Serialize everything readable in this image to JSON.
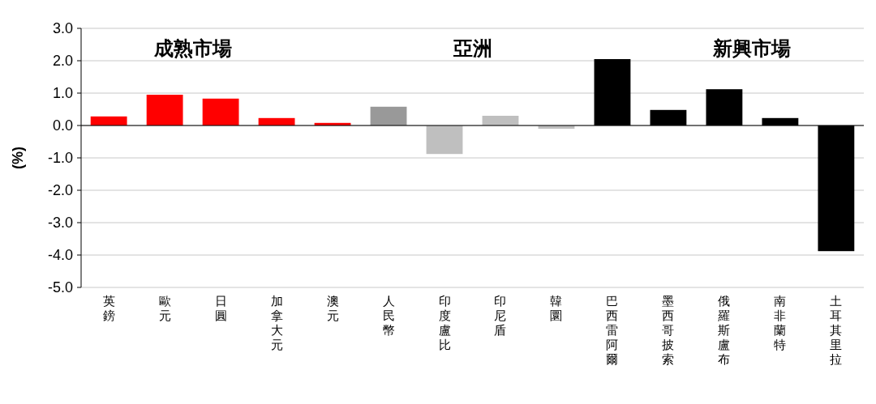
{
  "chart_data": {
    "type": "bar",
    "ylabel": "(%)",
    "categories": [
      "英鎊",
      "歐元",
      "日圓",
      "加拿大元",
      "澳元",
      "人民幣",
      "印度盧比",
      "印尼盾",
      "韓圜",
      "巴西雷阿爾",
      "墨西哥披索",
      "俄羅斯盧布",
      "南非蘭特",
      "土耳其里拉"
    ],
    "values": [
      0.28,
      0.95,
      0.83,
      0.23,
      0.08,
      0.58,
      -0.88,
      0.3,
      -0.1,
      2.05,
      0.48,
      1.12,
      0.23,
      -3.88
    ],
    "colors": [
      "#ff0000",
      "#ff0000",
      "#ff0000",
      "#ff0000",
      "#ff0000",
      "#999999",
      "#bfbfbf",
      "#bfbfbf",
      "#bfbfbf",
      "#000000",
      "#000000",
      "#000000",
      "#000000",
      "#000000"
    ],
    "ylim": [
      -5,
      3
    ],
    "yticks": [
      {
        "value": 3,
        "label": "3.0"
      },
      {
        "value": 2,
        "label": "2.0"
      },
      {
        "value": 1,
        "label": "1.0"
      },
      {
        "value": 0,
        "label": "0.0"
      },
      {
        "value": -1,
        "label": "-1.0"
      },
      {
        "value": -2,
        "label": "-2.0"
      },
      {
        "value": -3,
        "label": "-3.0"
      },
      {
        "value": -4,
        "label": "-4.0"
      },
      {
        "value": -5,
        "label": "-5.0"
      }
    ],
    "grid": "y",
    "annotations": [
      "成熟市場",
      "亞洲",
      "新興市場"
    ]
  }
}
